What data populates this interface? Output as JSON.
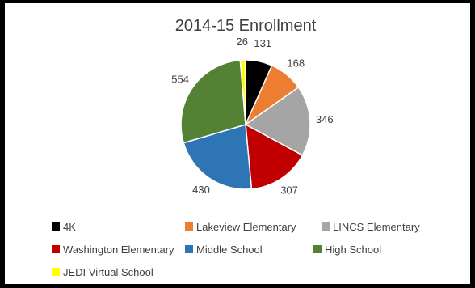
{
  "chart_data": {
    "type": "pie",
    "title": "2014-15 Enrollment",
    "slices": [
      {
        "label": "4K",
        "value": 131,
        "color": "#000000"
      },
      {
        "label": "Lakeview Elementary",
        "value": 168,
        "color": "#ED7D31"
      },
      {
        "label": "LINCS Elementary",
        "value": 346,
        "color": "#A5A5A5"
      },
      {
        "label": "Washington Elementary",
        "value": 307,
        "color": "#C00000"
      },
      {
        "label": "Middle School",
        "value": 430,
        "color": "#2E75B6"
      },
      {
        "label": "High School",
        "value": 554,
        "color": "#548235"
      },
      {
        "label": "JEDI Virtual School",
        "value": 26,
        "color": "#FFFF00"
      }
    ],
    "legend_position": "bottom"
  }
}
